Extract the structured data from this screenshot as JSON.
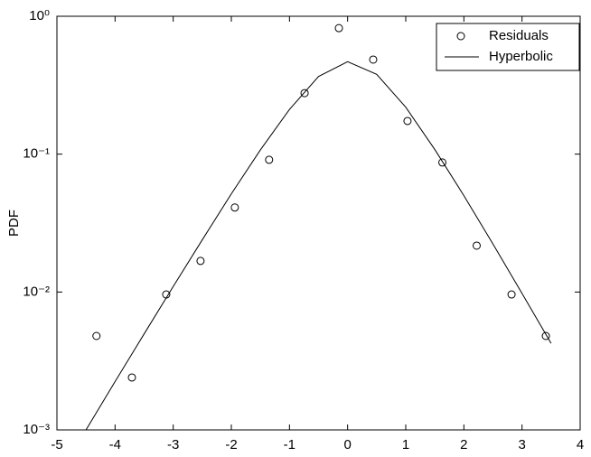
{
  "chart_data": {
    "type": "scatter",
    "y_label": "PDF",
    "yscale": "log",
    "xlim": [
      -5,
      4
    ],
    "xticks": [
      -5,
      -4,
      -3,
      -2,
      -1,
      0,
      1,
      2,
      3,
      4
    ],
    "ylim": [
      0.001,
      1
    ],
    "yticks": [
      {
        "value": 0.001,
        "label": "10⁻³"
      },
      {
        "value": 0.01,
        "label": "10⁻²"
      },
      {
        "value": 0.1,
        "label": "10⁻¹"
      },
      {
        "value": 1,
        "label": "10⁰"
      }
    ],
    "grid": false,
    "legend": "northeast",
    "series": [
      {
        "name": "Residuals",
        "type": "scatter",
        "color": "#000000",
        "x": [
          -4.32,
          -3.71,
          -3.12,
          -2.53,
          -1.94,
          -1.35,
          -0.74,
          -0.15,
          0.44,
          1.03,
          1.63,
          2.22,
          2.82,
          3.41
        ],
        "values": [
          0.0048,
          0.0024,
          0.0096,
          0.0168,
          0.041,
          0.091,
          0.277,
          0.82,
          0.485,
          0.174,
          0.087,
          0.0217,
          0.0096,
          0.0048
        ]
      },
      {
        "name": "Hyperbolic",
        "type": "line",
        "color": "#000000",
        "x": [
          -4.5,
          -4,
          -3.5,
          -3,
          -2.5,
          -2,
          -1.5,
          -1,
          -0.5,
          0,
          0.5,
          1,
          1.5,
          2,
          2.5,
          3,
          3.5
        ],
        "values": [
          0.001,
          0.00224,
          0.00497,
          0.01096,
          0.0239,
          0.0515,
          0.1074,
          0.211,
          0.366,
          0.468,
          0.379,
          0.219,
          0.108,
          0.05,
          0.0223,
          0.00977,
          0.00425
        ]
      }
    ]
  }
}
